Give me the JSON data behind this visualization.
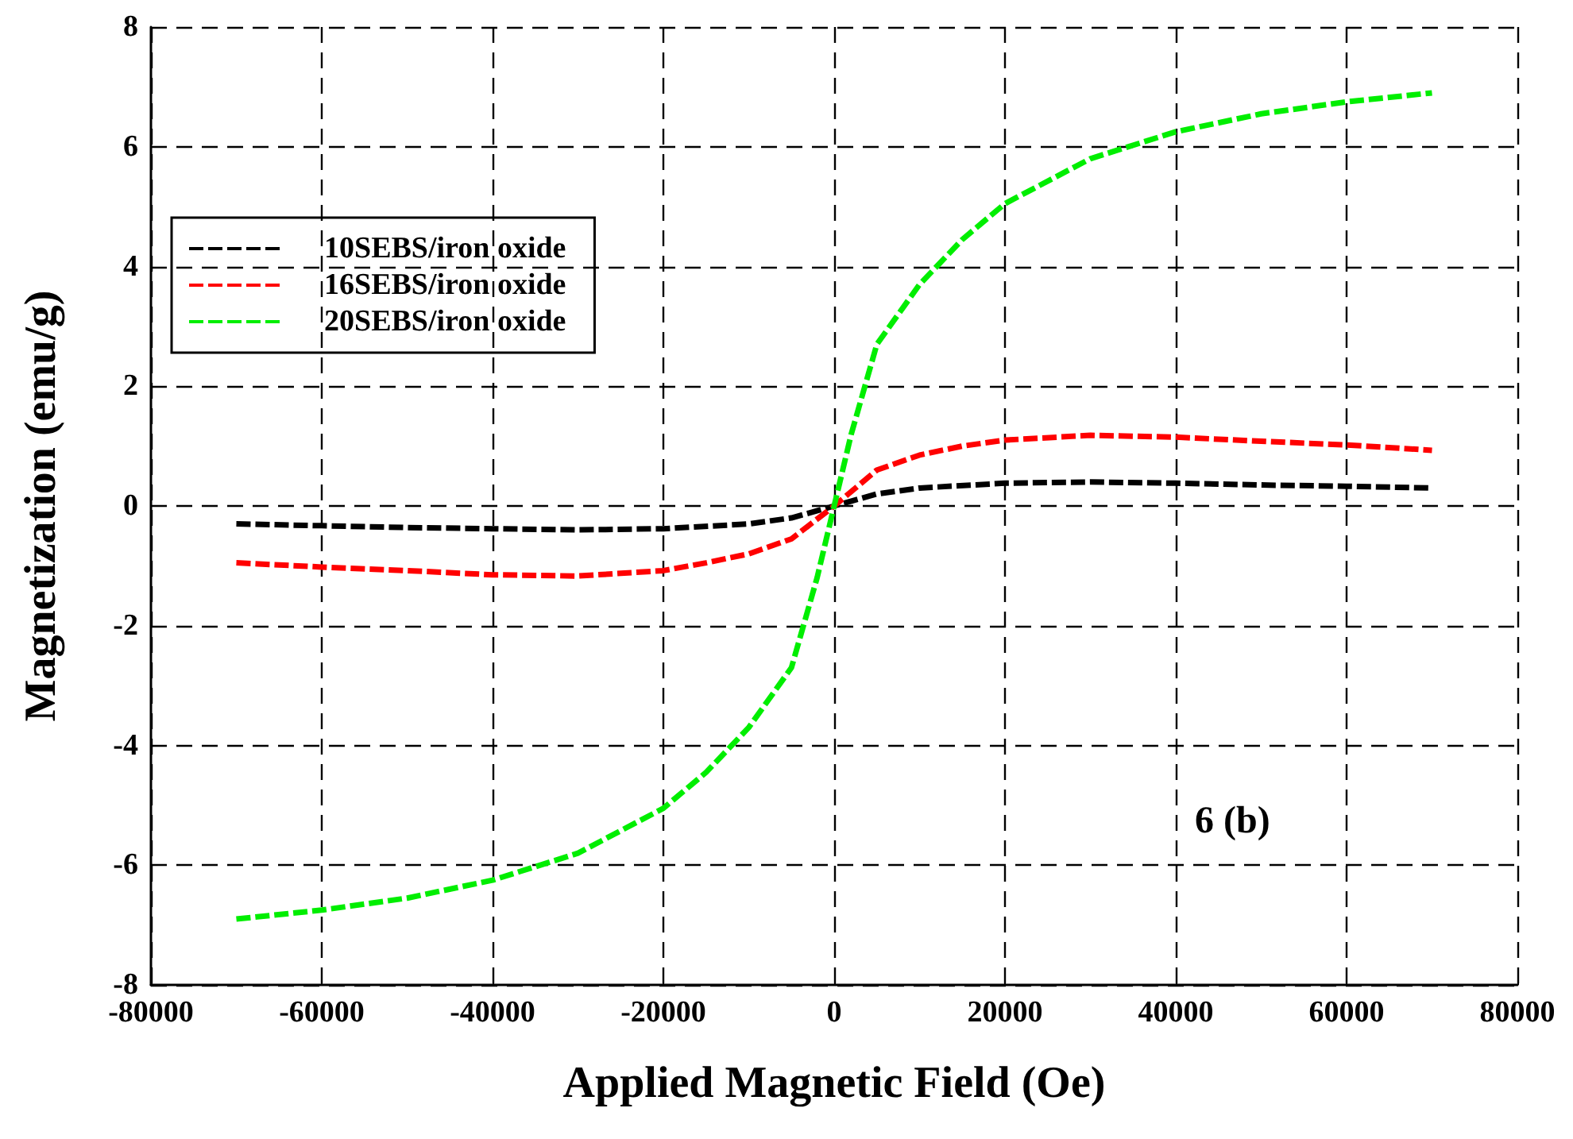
{
  "chart_data": {
    "type": "line",
    "xlabel": "Applied Magnetic Field (Oe)",
    "ylabel": "Magnetization (emu/g)",
    "xlim": [
      -80000,
      80000
    ],
    "xticks": [
      -80000,
      -60000,
      -40000,
      -20000,
      0,
      20000,
      40000,
      60000,
      80000
    ],
    "ylim": [
      -8,
      8
    ],
    "yticks": [
      -8,
      -6,
      -4,
      -2,
      0,
      2,
      4,
      6,
      8
    ],
    "grid": true,
    "legend": "top left",
    "marker": "none",
    "line_style": "dashed",
    "annotations": [
      "6 (b)"
    ],
    "series": [
      {
        "name": "10SEBS/iron oxide",
        "color": "#000000",
        "x": [
          -70000,
          -60000,
          -50000,
          -40000,
          -30000,
          -20000,
          -10000,
          -5000,
          0,
          5000,
          10000,
          20000,
          30000,
          40000,
          50000,
          60000,
          70000
        ],
        "values": [
          -0.3,
          -0.33,
          -0.36,
          -0.38,
          -0.4,
          -0.38,
          -0.3,
          -0.2,
          0,
          0.2,
          0.3,
          0.38,
          0.4,
          0.38,
          0.35,
          0.33,
          0.3
        ]
      },
      {
        "name": "16SEBS/iron oxide",
        "color": "#ff0000",
        "x": [
          -70000,
          -60000,
          -50000,
          -40000,
          -30000,
          -20000,
          -15000,
          -10000,
          -5000,
          0,
          5000,
          10000,
          15000,
          20000,
          30000,
          40000,
          50000,
          60000,
          70000
        ],
        "values": [
          -0.95,
          -1.02,
          -1.08,
          -1.15,
          -1.17,
          -1.08,
          -0.95,
          -0.8,
          -0.55,
          0,
          0.6,
          0.85,
          1.0,
          1.1,
          1.18,
          1.15,
          1.08,
          1.02,
          0.93
        ]
      },
      {
        "name": "20SEBS/iron oxide",
        "color": "#00ee00",
        "x": [
          -70000,
          -60000,
          -50000,
          -40000,
          -30000,
          -20000,
          -15000,
          -10000,
          -5000,
          -2000,
          0,
          2000,
          5000,
          10000,
          15000,
          20000,
          30000,
          40000,
          50000,
          60000,
          70000
        ],
        "values": [
          -6.9,
          -6.75,
          -6.55,
          -6.25,
          -5.8,
          -5.05,
          -4.45,
          -3.7,
          -2.7,
          -1.2,
          0,
          1.2,
          2.7,
          3.7,
          4.45,
          5.05,
          5.8,
          6.25,
          6.55,
          6.75,
          6.9
        ]
      }
    ]
  }
}
